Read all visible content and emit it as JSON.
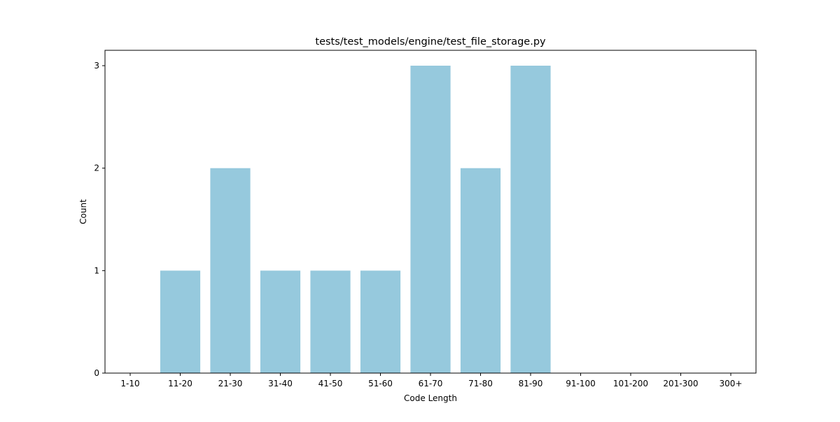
{
  "chart_data": {
    "type": "bar",
    "title": "tests/test_models/engine/test_file_storage.py",
    "xlabel": "Code Length",
    "ylabel": "Count",
    "categories": [
      "1-10",
      "11-20",
      "21-30",
      "31-40",
      "41-50",
      "51-60",
      "61-70",
      "71-80",
      "81-90",
      "91-100",
      "101-200",
      "201-300",
      "300+"
    ],
    "values": [
      0,
      1,
      2,
      1,
      1,
      1,
      3,
      2,
      3,
      0,
      0,
      0,
      0
    ],
    "yticks": [
      "0",
      "1",
      "2",
      "3"
    ],
    "ylim": [
      0,
      3.15
    ],
    "bar_color": "#96c9dd",
    "grid": false,
    "legend": "none"
  }
}
